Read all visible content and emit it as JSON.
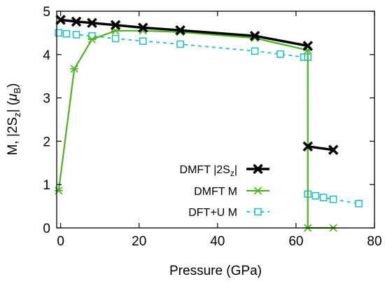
{
  "chart_data": {
    "type": "line",
    "title": "",
    "xlabel": "Pressure (GPa)",
    "ylabel": "M, |2S",
    "ylabel_sub": "z",
    "ylabel_mid": "| (",
    "ylabel_mu": "μ",
    "ylabel_musub": "B",
    "ylabel_end": ")",
    "xlim": [
      -1,
      80
    ],
    "ylim": [
      0,
      5
    ],
    "xticks": [
      0,
      20,
      40,
      60,
      80
    ],
    "yticks": [
      0,
      1,
      2,
      3,
      4,
      5
    ],
    "grid": false,
    "legend_position": "lower-center",
    "series": [
      {
        "name": "DMFT |2S",
        "name_sub": "z",
        "name_end": "|",
        "color": "#000000",
        "marker": "x",
        "dashed": false,
        "segments": [
          [
            [
              0,
              4.8
            ],
            [
              4,
              4.76
            ],
            [
              8,
              4.73
            ],
            [
              14,
              4.68
            ],
            [
              21,
              4.62
            ],
            [
              30.5,
              4.56
            ],
            [
              49.5,
              4.43
            ],
            [
              63,
              4.2
            ]
          ],
          [
            [
              63,
              1.88
            ],
            [
              69.5,
              1.8
            ]
          ]
        ]
      },
      {
        "name": "DMFT M",
        "color": "#4cb21f",
        "marker": "asterisk",
        "dashed": false,
        "segments": [
          [
            [
              -0.5,
              0.86
            ],
            [
              3.5,
              3.67
            ],
            [
              8,
              4.35
            ],
            [
              14,
              4.55
            ],
            [
              21,
              4.55
            ],
            [
              30.5,
              4.52
            ],
            [
              49.5,
              4.38
            ],
            [
              63,
              4.1
            ],
            [
              63,
              0
            ],
            [
              69.5,
              0
            ]
          ]
        ]
      },
      {
        "name": "DFT+U M",
        "color": "#27bfc7",
        "marker": "square",
        "dashed": true,
        "segments": [
          [
            [
              -0.5,
              4.5
            ],
            [
              1.5,
              4.48
            ],
            [
              4,
              4.46
            ],
            [
              8,
              4.43
            ],
            [
              14,
              4.37
            ],
            [
              21,
              4.31
            ],
            [
              30.5,
              4.24
            ],
            [
              49.5,
              4.08
            ],
            [
              56,
              4.01
            ],
            [
              62,
              3.94
            ],
            [
              63,
              3.94
            ],
            [
              63,
              0.78
            ],
            [
              65,
              0.74
            ],
            [
              67,
              0.7
            ],
            [
              69.5,
              0.66
            ],
            [
              76,
              0.56
            ]
          ]
        ]
      }
    ]
  }
}
